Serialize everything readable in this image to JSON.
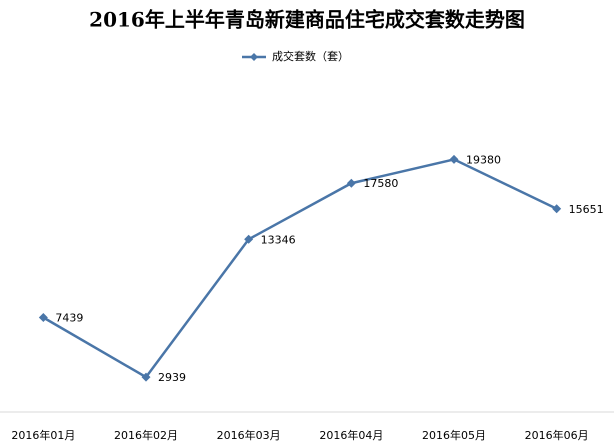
{
  "chart_data": {
    "type": "line",
    "title": "2016年上半年青岛新建商品住宅成交套数走势图",
    "categories": [
      "2016年01月",
      "2016年02月",
      "2016年03月",
      "2016年04月",
      "2016年05月",
      "2016年06月"
    ],
    "series": [
      {
        "name": "成交套数（套）",
        "color": "#4a76a8",
        "values": [
          7439,
          2939,
          13346,
          17580,
          19380,
          15651
        ]
      }
    ],
    "ylim": [
      0,
      25000
    ],
    "legend": "top"
  }
}
